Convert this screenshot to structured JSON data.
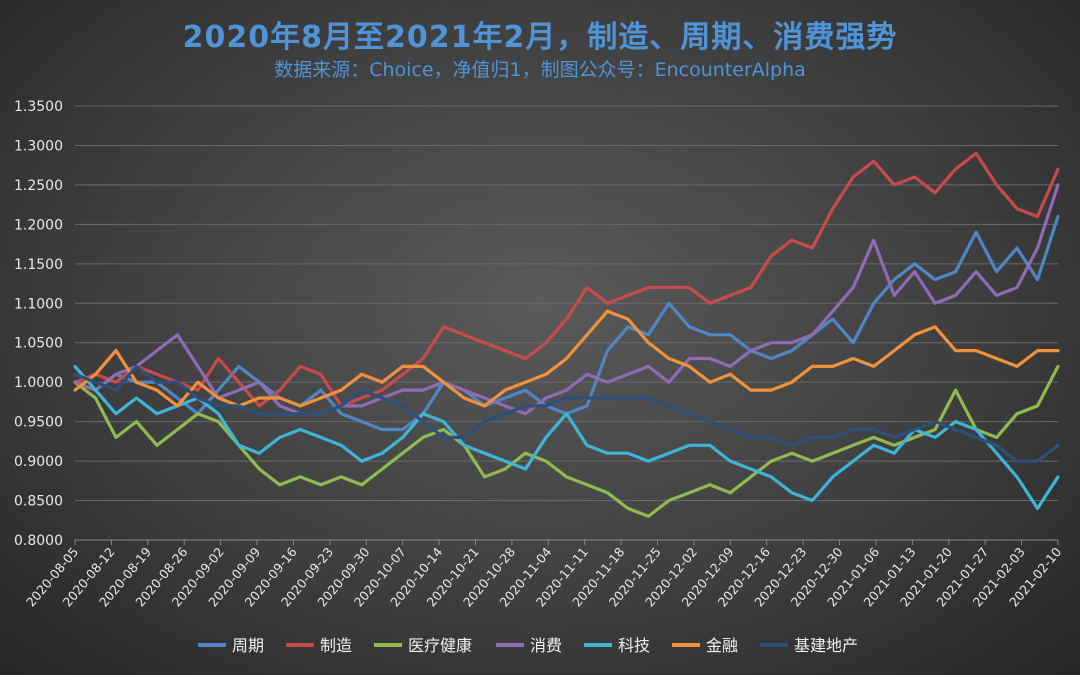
{
  "chart_data": {
    "type": "line",
    "title": "2020年8月至2021年2月，制造、周期、消费强势",
    "subtitle": "数据来源：Choice，净值归1，制图公众号：EncounterAlpha",
    "ylim": [
      0.8,
      1.35
    ],
    "y_ticks": [
      "0.8000",
      "0.8500",
      "0.9000",
      "0.9500",
      "1.0000",
      "1.0500",
      "1.1000",
      "1.1500",
      "1.2000",
      "1.2500",
      "1.3000",
      "1.3500"
    ],
    "x_ticks": [
      "2020-08-05",
      "2020-08-12",
      "2020-08-19",
      "2020-08-26",
      "2020-09-02",
      "2020-09-09",
      "2020-09-16",
      "2020-09-23",
      "2020-09-30",
      "2020-10-07",
      "2020-10-14",
      "2020-10-21",
      "2020-10-28",
      "2020-11-04",
      "2020-11-11",
      "2020-11-18",
      "2020-11-25",
      "2020-12-02",
      "2020-12-09",
      "2020-12-16",
      "2020-12-23",
      "2020-12-30",
      "2021-01-06",
      "2021-01-13",
      "2021-01-20",
      "2021-01-27",
      "2021-02-03",
      "2021-02-10"
    ],
    "grid": true,
    "legend_position": "bottom",
    "series": [
      {
        "name": "周期",
        "color": "#4f86c6",
        "values": [
          1.0,
          0.99,
          1.01,
          1.0,
          1.0,
          0.98,
          0.96,
          0.99,
          1.02,
          1.0,
          0.98,
          0.97,
          0.99,
          0.96,
          0.95,
          0.94,
          0.94,
          0.96,
          1.0,
          0.99,
          0.97,
          0.98,
          0.99,
          0.97,
          0.96,
          0.97,
          1.04,
          1.07,
          1.06,
          1.1,
          1.07,
          1.06,
          1.06,
          1.04,
          1.03,
          1.04,
          1.06,
          1.08,
          1.05,
          1.1,
          1.13,
          1.15,
          1.13,
          1.14,
          1.19,
          1.14,
          1.17,
          1.13,
          1.21
        ]
      },
      {
        "name": "制造",
        "color": "#c84b4b",
        "values": [
          1.0,
          1.01,
          1.0,
          1.02,
          1.01,
          1.0,
          0.99,
          1.03,
          1.0,
          0.97,
          0.99,
          1.02,
          1.01,
          0.97,
          0.98,
          0.99,
          1.01,
          1.03,
          1.07,
          1.06,
          1.05,
          1.04,
          1.03,
          1.05,
          1.08,
          1.12,
          1.1,
          1.11,
          1.12,
          1.12,
          1.12,
          1.1,
          1.11,
          1.12,
          1.16,
          1.18,
          1.17,
          1.22,
          1.26,
          1.28,
          1.25,
          1.26,
          1.24,
          1.27,
          1.29,
          1.25,
          1.22,
          1.21,
          1.27
        ]
      },
      {
        "name": "医疗健康",
        "color": "#8fba4f",
        "values": [
          1.0,
          0.98,
          0.93,
          0.95,
          0.92,
          0.94,
          0.96,
          0.95,
          0.92,
          0.89,
          0.87,
          0.88,
          0.87,
          0.88,
          0.87,
          0.89,
          0.91,
          0.93,
          0.94,
          0.92,
          0.88,
          0.89,
          0.91,
          0.9,
          0.88,
          0.87,
          0.86,
          0.84,
          0.83,
          0.85,
          0.86,
          0.87,
          0.86,
          0.88,
          0.9,
          0.91,
          0.9,
          0.91,
          0.92,
          0.93,
          0.92,
          0.93,
          0.94,
          0.99,
          0.94,
          0.93,
          0.96,
          0.97,
          1.02
        ]
      },
      {
        "name": "消费",
        "color": "#8e6bb4",
        "values": [
          1.0,
          0.99,
          1.01,
          1.02,
          1.04,
          1.06,
          1.02,
          0.98,
          0.99,
          1.0,
          0.97,
          0.96,
          0.96,
          0.97,
          0.97,
          0.98,
          0.99,
          0.99,
          1.0,
          0.99,
          0.98,
          0.97,
          0.96,
          0.98,
          0.99,
          1.01,
          1.0,
          1.01,
          1.02,
          1.0,
          1.03,
          1.03,
          1.02,
          1.04,
          1.05,
          1.05,
          1.06,
          1.09,
          1.12,
          1.18,
          1.11,
          1.14,
          1.1,
          1.11,
          1.14,
          1.11,
          1.12,
          1.17,
          1.25
        ]
      },
      {
        "name": "科技",
        "color": "#3fb4d6",
        "values": [
          1.02,
          0.99,
          0.96,
          0.98,
          0.96,
          0.97,
          0.98,
          0.96,
          0.92,
          0.91,
          0.93,
          0.94,
          0.93,
          0.92,
          0.9,
          0.91,
          0.93,
          0.96,
          0.95,
          0.92,
          0.91,
          0.9,
          0.89,
          0.93,
          0.96,
          0.92,
          0.91,
          0.91,
          0.9,
          0.91,
          0.92,
          0.92,
          0.9,
          0.89,
          0.88,
          0.86,
          0.85,
          0.88,
          0.9,
          0.92,
          0.91,
          0.94,
          0.93,
          0.95,
          0.94,
          0.91,
          0.88,
          0.84,
          0.88
        ]
      },
      {
        "name": "金融",
        "color": "#f0913c",
        "values": [
          0.99,
          1.01,
          1.04,
          1.0,
          0.99,
          0.97,
          1.0,
          0.98,
          0.97,
          0.98,
          0.98,
          0.97,
          0.98,
          0.99,
          1.01,
          1.0,
          1.02,
          1.02,
          1.0,
          0.98,
          0.97,
          0.99,
          1.0,
          1.01,
          1.03,
          1.06,
          1.09,
          1.08,
          1.05,
          1.03,
          1.02,
          1.0,
          1.01,
          0.99,
          0.99,
          1.0,
          1.02,
          1.02,
          1.03,
          1.02,
          1.04,
          1.06,
          1.07,
          1.04,
          1.04,
          1.03,
          1.02,
          1.04,
          1.04
        ]
      },
      {
        "name": "基建地产",
        "color": "#2d4f7a",
        "values": [
          1.01,
          1.0,
          0.99,
          1.02,
          1.0,
          1.0,
          0.98,
          0.97,
          0.97,
          0.96,
          0.96,
          0.96,
          0.96,
          0.97,
          0.99,
          0.98,
          0.97,
          0.95,
          0.93,
          0.93,
          0.95,
          0.96,
          0.97,
          0.97,
          0.98,
          0.98,
          0.98,
          0.98,
          0.98,
          0.97,
          0.96,
          0.95,
          0.94,
          0.93,
          0.93,
          0.92,
          0.93,
          0.93,
          0.94,
          0.94,
          0.93,
          0.94,
          0.95,
          0.94,
          0.93,
          0.92,
          0.9,
          0.9,
          0.92
        ]
      }
    ]
  }
}
